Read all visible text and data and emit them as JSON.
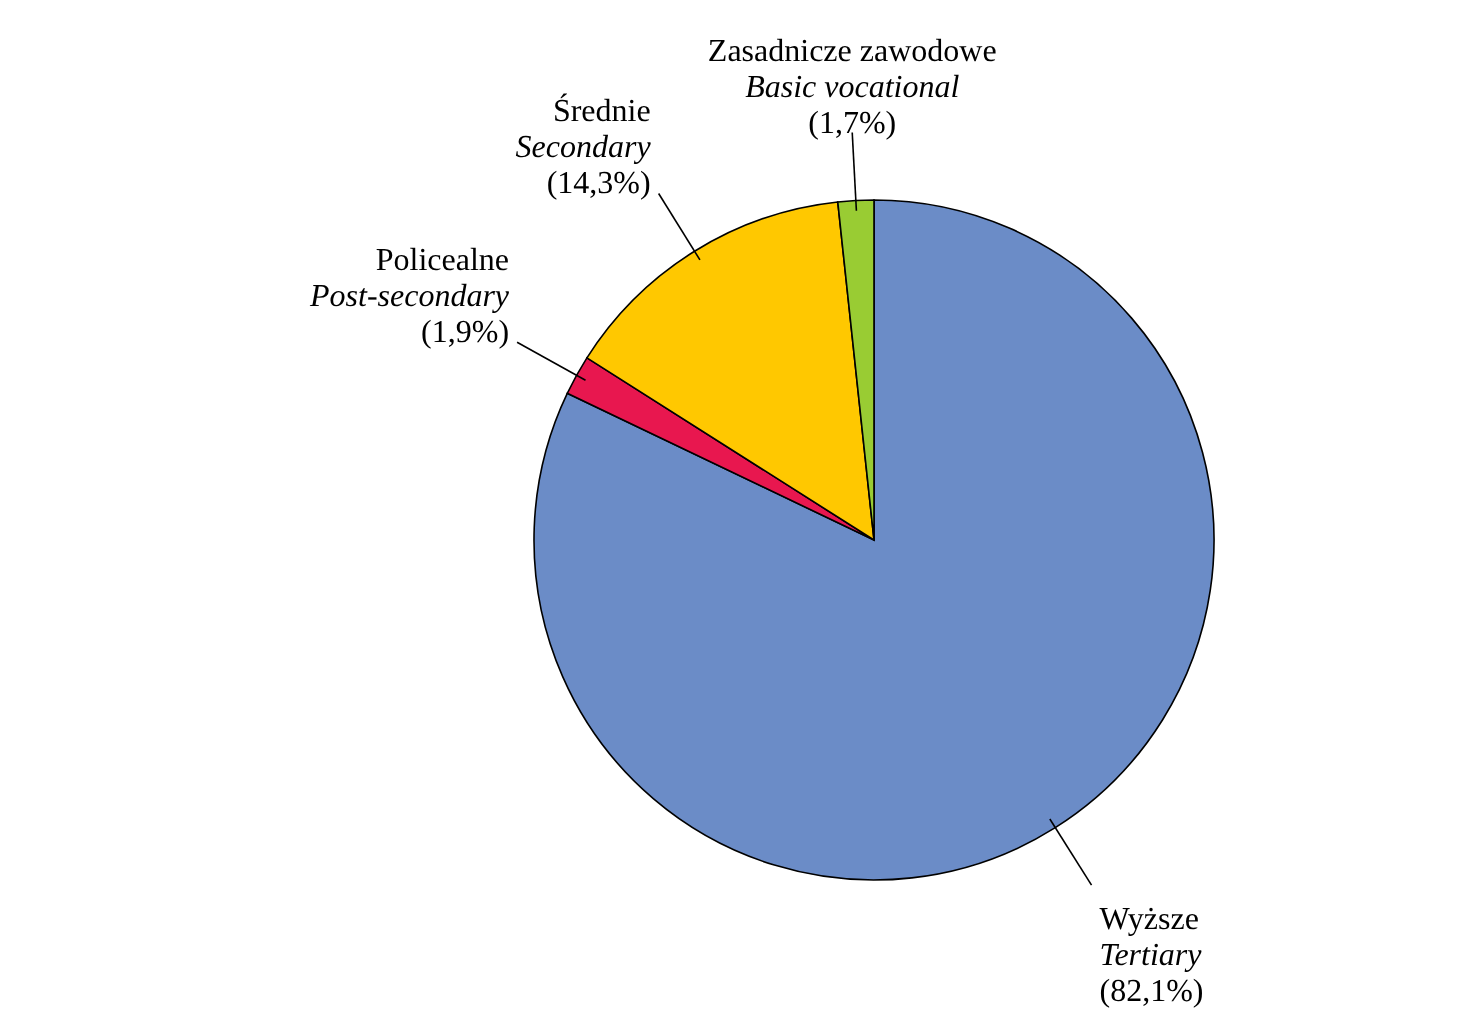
{
  "chart_data": {
    "type": "pie",
    "categories": [
      "Wyższe\nTertiary",
      "Policealne\nPost-secondary",
      "Średnie\nSecondary",
      "Zasadnicze zawodowe\nBasic vocational"
    ],
    "values": [
      82.1,
      1.9,
      14.3,
      1.7
    ],
    "colors": [
      "#6b8cc7",
      "#e8174f",
      "#ffc800",
      "#99cc33"
    ],
    "value_labels": [
      "(82,1%)",
      "(1,9%)",
      "(14,3%)",
      "(1,7%)"
    ]
  }
}
